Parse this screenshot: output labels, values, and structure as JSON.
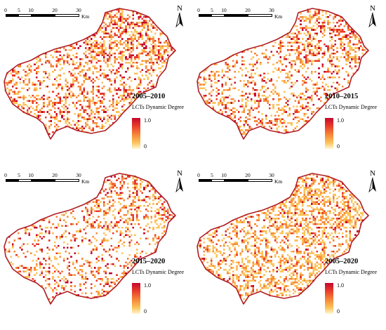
{
  "scale": {
    "ticks": [
      "0",
      "5",
      "10",
      "20",
      "30"
    ],
    "unit": "Km"
  },
  "north_label": "N",
  "legend": {
    "title": "LCTs Dynamic Degree",
    "max": "1.0",
    "min": "0",
    "colors": [
      "#fff7d2",
      "#fbc35a",
      "#f7893a",
      "#e83a2a",
      "#c4072e"
    ]
  },
  "outline_color": "#b11d23",
  "panels": [
    {
      "period": "2005–2010",
      "density": 0.5
    },
    {
      "period": "2010–2015",
      "density": 0.4
    },
    {
      "period": "2015–2020",
      "density": 0.3
    },
    {
      "period": "2005–2020",
      "density": 0.6
    }
  ]
}
